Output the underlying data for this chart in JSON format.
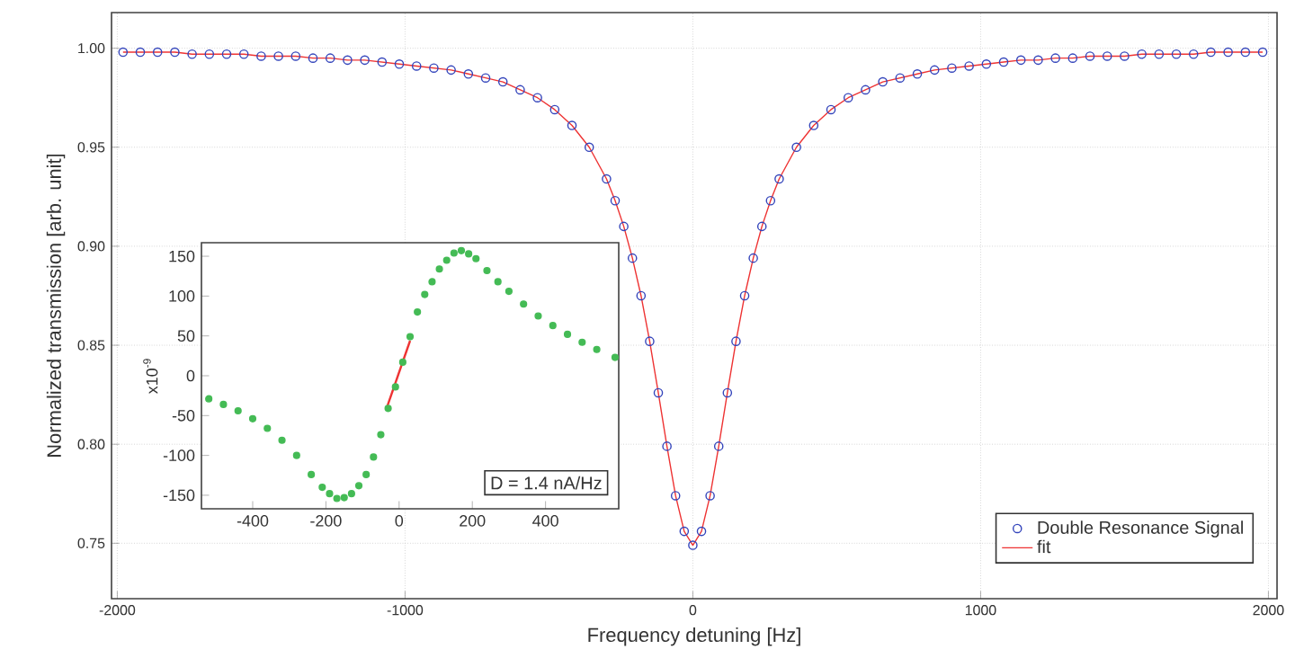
{
  "chart_data": [
    {
      "type": "scatter",
      "xlabel": "Frequency detuning [Hz]",
      "ylabel": "Normalized transmission [arb. unit]",
      "xlim": [
        -2020,
        2030
      ],
      "ylim": [
        0.722,
        1.018
      ],
      "xticks": [
        -2000,
        -1000,
        0,
        1000,
        2000
      ],
      "yticks": [
        0.75,
        {
          "value": 0.8,
          "label": "0.80"
        },
        0.85,
        {
          "value": 0.9,
          "label": "0.90"
        },
        0.95,
        {
          "value": 1.0,
          "label": "1.00"
        }
      ],
      "grid": true,
      "legend": "bottom right",
      "series": [
        {
          "name": "Double Resonance Signal",
          "color": "#3344bb",
          "marker": "circle",
          "x": [
            -1980,
            -1920,
            -1860,
            -1800,
            -1740,
            -1680,
            -1620,
            -1560,
            -1500,
            -1440,
            -1380,
            -1320,
            -1260,
            -1200,
            -1140,
            -1080,
            -1020,
            -960,
            -900,
            -840,
            -780,
            -720,
            -660,
            -600,
            -540,
            -480,
            -420,
            -360,
            -300,
            -270,
            -240,
            -210,
            -180,
            -150,
            -120,
            -90,
            -60,
            -30,
            0,
            30,
            60,
            90,
            120,
            150,
            180,
            210,
            240,
            270,
            300,
            360,
            420,
            480,
            540,
            600,
            660,
            720,
            780,
            840,
            900,
            960,
            1020,
            1080,
            1140,
            1200,
            1260,
            1320,
            1380,
            1440,
            1500,
            1560,
            1620,
            1680,
            1740,
            1800,
            1860,
            1920,
            1980
          ],
          "values": [
            0.998,
            0.998,
            0.998,
            0.998,
            0.997,
            0.997,
            0.997,
            0.997,
            0.996,
            0.996,
            0.996,
            0.995,
            0.995,
            0.994,
            0.994,
            0.993,
            0.992,
            0.991,
            0.99,
            0.989,
            0.987,
            0.985,
            0.983,
            0.979,
            0.975,
            0.969,
            0.961,
            0.95,
            0.934,
            0.923,
            0.91,
            0.894,
            0.875,
            0.852,
            0.826,
            0.799,
            0.774,
            0.756,
            0.749,
            0.756,
            0.774,
            0.799,
            0.826,
            0.852,
            0.875,
            0.894,
            0.91,
            0.923,
            0.934,
            0.95,
            0.961,
            0.969,
            0.975,
            0.979,
            0.983,
            0.985,
            0.987,
            0.989,
            0.99,
            0.991,
            0.992,
            0.993,
            0.994,
            0.994,
            0.995,
            0.995,
            0.996,
            0.996,
            0.996,
            0.997,
            0.997,
            0.997,
            0.997,
            0.998,
            0.998,
            0.998,
            0.998
          ]
        },
        {
          "name": "fit",
          "type": "line",
          "color": "#ee3333",
          "marker": "none",
          "x": [
            -1980,
            -1920,
            -1860,
            -1800,
            -1740,
            -1680,
            -1620,
            -1560,
            -1500,
            -1440,
            -1380,
            -1320,
            -1260,
            -1200,
            -1140,
            -1080,
            -1020,
            -960,
            -900,
            -840,
            -780,
            -720,
            -660,
            -600,
            -540,
            -480,
            -420,
            -360,
            -300,
            -270,
            -240,
            -210,
            -180,
            -150,
            -120,
            -90,
            -60,
            -30,
            0,
            30,
            60,
            90,
            120,
            150,
            180,
            210,
            240,
            270,
            300,
            360,
            420,
            480,
            540,
            600,
            660,
            720,
            780,
            840,
            900,
            960,
            1020,
            1080,
            1140,
            1200,
            1260,
            1320,
            1380,
            1440,
            1500,
            1560,
            1620,
            1680,
            1740,
            1800,
            1860,
            1920,
            1980
          ],
          "values": [
            0.998,
            0.998,
            0.998,
            0.998,
            0.997,
            0.997,
            0.997,
            0.997,
            0.996,
            0.996,
            0.996,
            0.995,
            0.995,
            0.994,
            0.994,
            0.993,
            0.992,
            0.991,
            0.99,
            0.989,
            0.987,
            0.985,
            0.983,
            0.979,
            0.975,
            0.969,
            0.961,
            0.95,
            0.934,
            0.923,
            0.91,
            0.894,
            0.875,
            0.852,
            0.826,
            0.799,
            0.774,
            0.756,
            0.749,
            0.756,
            0.774,
            0.799,
            0.826,
            0.852,
            0.875,
            0.894,
            0.91,
            0.923,
            0.934,
            0.95,
            0.961,
            0.969,
            0.975,
            0.979,
            0.983,
            0.985,
            0.987,
            0.989,
            0.99,
            0.991,
            0.992,
            0.993,
            0.994,
            0.994,
            0.995,
            0.995,
            0.996,
            0.996,
            0.996,
            0.997,
            0.997,
            0.997,
            0.997,
            0.998,
            0.998,
            0.998,
            0.998
          ]
        }
      ]
    },
    {
      "type": "scatter",
      "ylabel": "x10$^{-9}$",
      "xlim": [
        -540,
        600
      ],
      "ylim": [
        -167,
        167
      ],
      "xticks": [
        -400,
        -200,
        0,
        200,
        400
      ],
      "yticks": [
        -150,
        -100,
        -50,
        0,
        50,
        100,
        150
      ],
      "annotations": [
        "D = 1.4 nA/Hz"
      ],
      "series": [
        {
          "color": "#44bb55",
          "marker": "circle",
          "x": [
            -520,
            -480,
            -440,
            -400,
            -360,
            -320,
            -280,
            -240,
            -210,
            -190,
            -170,
            -150,
            -130,
            -110,
            -90,
            -70,
            -50,
            -30,
            -10,
            10,
            30,
            50,
            70,
            90,
            110,
            130,
            150,
            170,
            190,
            210,
            240,
            270,
            300,
            340,
            380,
            420,
            460,
            500,
            540,
            590
          ],
          "values": [
            -29,
            -36,
            -44,
            -54,
            -66,
            -81,
            -100,
            -124,
            -140,
            -148,
            -154,
            -153,
            -148,
            -138,
            -124,
            -102,
            -74,
            -41,
            -14,
            17,
            49,
            80,
            102,
            118,
            134,
            145,
            154,
            157,
            153,
            147,
            132,
            118,
            106,
            90,
            75,
            63,
            52,
            42,
            33,
            23
          ]
        },
        {
          "type": "line",
          "color": "#ee3333",
          "marker": "none",
          "x": [
            -35,
            30
          ],
          "values": [
            -42,
            44
          ]
        }
      ]
    }
  ]
}
